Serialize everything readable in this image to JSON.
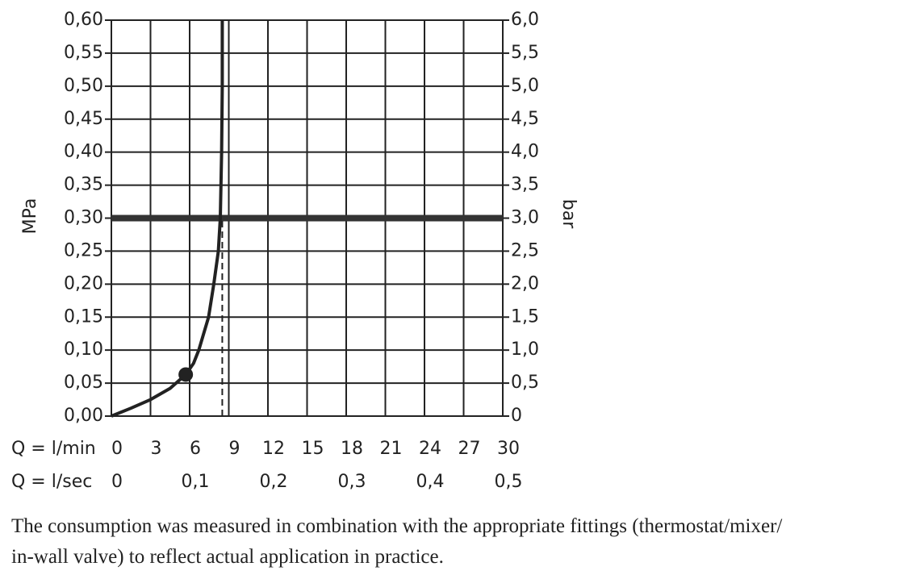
{
  "chart_data": {
    "type": "line",
    "y_label": "MPa",
    "y2_label": "bar",
    "x_row_label": "Q = l/min",
    "x2_row_label": "Q = l/sec",
    "xlim": [
      0,
      30
    ],
    "xticks": [
      0,
      3,
      6,
      9,
      12,
      15,
      18,
      21,
      24,
      27,
      30
    ],
    "x2lim": [
      0,
      0.5
    ],
    "x2ticks": [
      0,
      {
        "value": 0.1,
        "label": "0,1"
      },
      {
        "value": 0.2,
        "label": "0,2"
      },
      {
        "value": 0.3,
        "label": "0,3"
      },
      {
        "value": 0.4,
        "label": "0,4"
      },
      {
        "value": 0.5,
        "label": "0,5"
      }
    ],
    "ylim": [
      0,
      0.6
    ],
    "yticks": [
      {
        "value": 0,
        "label": "0,00"
      },
      {
        "value": 0.05,
        "label": "0,05"
      },
      {
        "value": 0.1,
        "label": "0,10"
      },
      {
        "value": 0.15,
        "label": "0,15"
      },
      {
        "value": 0.2,
        "label": "0,20"
      },
      {
        "value": 0.25,
        "label": "0,25"
      },
      {
        "value": 0.3,
        "label": "0,30"
      },
      {
        "value": 0.35,
        "label": "0,35"
      },
      {
        "value": 0.4,
        "label": "0,40"
      },
      {
        "value": 0.45,
        "label": "0,45"
      },
      {
        "value": 0.5,
        "label": "0,50"
      },
      {
        "value": 0.55,
        "label": "0,55"
      },
      {
        "value": 0.6,
        "label": "0,60"
      }
    ],
    "y2lim": [
      0,
      6
    ],
    "y2ticks": [
      0,
      {
        "value": 0.5,
        "label": "0,5"
      },
      {
        "value": 1,
        "label": "1,0"
      },
      {
        "value": 1.5,
        "label": "1,5"
      },
      {
        "value": 2,
        "label": "2,0"
      },
      {
        "value": 2.5,
        "label": "2,5"
      },
      {
        "value": 3,
        "label": "3,0"
      },
      {
        "value": 3.5,
        "label": "3,5"
      },
      {
        "value": 4,
        "label": "4,0"
      },
      {
        "value": 4.5,
        "label": "4,5"
      },
      {
        "value": 5,
        "label": "5,0"
      },
      {
        "value": 5.5,
        "label": "5,5"
      },
      {
        "value": 6,
        "label": "6,0"
      }
    ],
    "grid": true,
    "series": [
      {
        "color": "#222222",
        "x": [
          0,
          1.5,
          3,
          4.5,
          5.7,
          6.3,
          6.7,
          7.0,
          7.45,
          7.85,
          8.2,
          8.35,
          8.45,
          8.5,
          8.5
        ],
        "values": [
          0,
          0.012,
          0.025,
          0.042,
          0.063,
          0.08,
          0.1,
          0.12,
          0.15,
          0.2,
          0.25,
          0.3,
          0.4,
          0.5,
          0.6
        ]
      }
    ],
    "marker": {
      "x": 5.7,
      "y": 0.063,
      "color": "#222222"
    },
    "reference_pressure": 0.3,
    "reference_flow": 8.5
  },
  "note": [
    "The consumption was measured in combination with the appropriate fittings (thermostat/mixer/",
    "in-wall valve) to reflect actual application in practice."
  ]
}
